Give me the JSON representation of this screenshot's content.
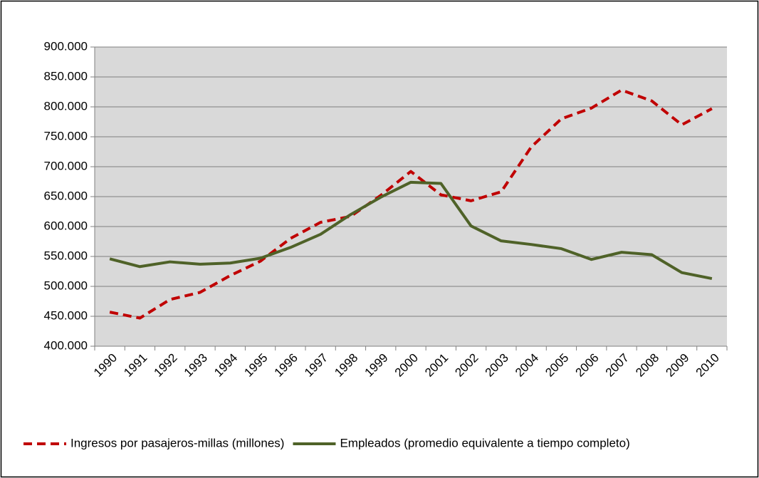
{
  "chart_data": {
    "type": "line",
    "categories": [
      "1990",
      "1991",
      "1992",
      "1993",
      "1994",
      "1995",
      "1996",
      "1997",
      "1998",
      "1999",
      "2000",
      "2001",
      "2002",
      "2003",
      "2004",
      "2005",
      "2006",
      "2007",
      "2008",
      "2009",
      "2010"
    ],
    "series": [
      {
        "name": "Ingresos por pasajeros-millas (millones)",
        "color": "#c00000",
        "dashed": true,
        "values": [
          457000,
          447000,
          478000,
          490000,
          518000,
          542000,
          580000,
          607000,
          617000,
          652000,
          692000,
          653000,
          643000,
          658000,
          733000,
          780000,
          798000,
          828000,
          810000,
          770000,
          797000
        ]
      },
      {
        "name": "Empleados (promedio equivalente a tiempo completo)",
        "color": "#4f6228",
        "dashed": false,
        "values": [
          546000,
          533000,
          541000,
          537000,
          539000,
          547000,
          565000,
          587000,
          620000,
          649000,
          674000,
          672000,
          601000,
          576000,
          570000,
          563000,
          545000,
          557000,
          553000,
          523000,
          513000
        ]
      }
    ],
    "ylim": [
      400000,
      900000
    ],
    "yticks": [
      {
        "value": 400000,
        "label": "400.000"
      },
      {
        "value": 450000,
        "label": "450.000"
      },
      {
        "value": 500000,
        "label": "500.000"
      },
      {
        "value": 550000,
        "label": "550.000"
      },
      {
        "value": 600000,
        "label": "600.000"
      },
      {
        "value": 650000,
        "label": "650.000"
      },
      {
        "value": 700000,
        "label": "700.000"
      },
      {
        "value": 750000,
        "label": "750.000"
      },
      {
        "value": 800000,
        "label": "800.000"
      },
      {
        "value": 850000,
        "label": "850.000"
      },
      {
        "value": 900000,
        "label": "900.000"
      }
    ],
    "grid": true,
    "legend": "bottom"
  }
}
